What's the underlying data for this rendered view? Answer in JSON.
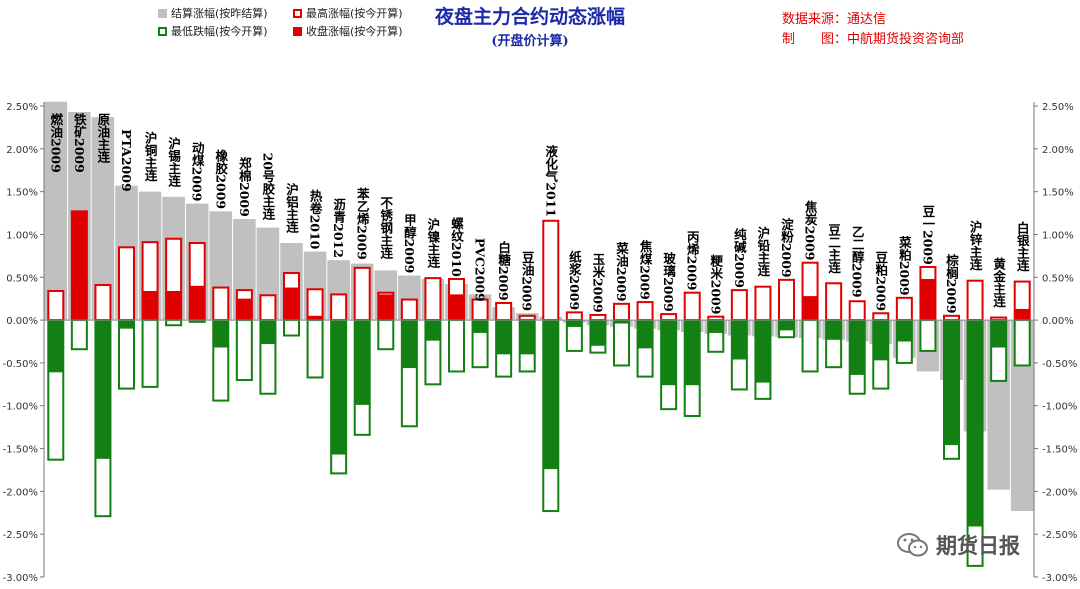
{
  "legend": {
    "settle": "结算涨幅(按昨结算)",
    "high": "最高涨幅(按今开算)",
    "low": "最低跌幅(按今开算)",
    "close": "收盘涨幅(按今开算)"
  },
  "header": {
    "title": "夜盘主力合约动态涨幅",
    "subtitle": "(开盘价计算)"
  },
  "source": {
    "line1": "数据来源：通达信",
    "line2": "制　　图：中航期货投资咨询部"
  },
  "watermark": {
    "text": "期货日报"
  },
  "colors": {
    "settle": "#c0c0c0",
    "high": "#e00000",
    "close": "#e00000",
    "low": "#128012",
    "label": "#000000"
  },
  "chart_data": {
    "type": "bar",
    "ylim": [
      -0.03,
      0.025
    ],
    "y_ticks": [
      "2.50%",
      "2.00%",
      "1.50%",
      "1.00%",
      "0.50%",
      "0.00%",
      "-0.50%",
      "-1.00%",
      "-1.50%",
      "-2.00%",
      "-2.50%",
      "-3.00%"
    ],
    "y_tick_values": [
      0.025,
      0.02,
      0.015,
      0.01,
      0.005,
      0,
      -0.005,
      -0.01,
      -0.015,
      -0.02,
      -0.025,
      -0.03
    ],
    "grid": false,
    "legend_position": "top-left",
    "categories": [
      "燃油2009",
      "铁矿2009",
      "原油主连",
      "PTA2009",
      "沪铜主连",
      "沪锡主连",
      "动煤2009",
      "橡胶2009",
      "郑棉2009",
      "20号胶主连",
      "沪铝主连",
      "热卷2010",
      "沥青2012",
      "苯乙烯2009",
      "不锈钢主连",
      "甲醇2009",
      "沪镍主连",
      "螺纹2010",
      "PVC2009",
      "白糖2009",
      "豆油2009",
      "液化气2011",
      "纸浆2009",
      "玉米2009",
      "菜油2009",
      "焦煤2009",
      "玻璃2009",
      "丙烯2009",
      "粳米2009",
      "纯碱2009",
      "沪铅主连",
      "淀粉2009",
      "焦炭2009",
      "豆二主连",
      "乙二醇2009",
      "豆粕2009",
      "菜粕2009",
      "豆一2009",
      "棕榈2009",
      "沪锌主连",
      "黄金主连",
      "白银主连"
    ],
    "series": [
      {
        "name": "结算涨幅(按昨结算)",
        "values": [
          0.0255,
          0.0243,
          0.0237,
          0.0157,
          0.015,
          0.0144,
          0.0136,
          0.0127,
          0.0118,
          0.0108,
          0.009,
          0.008,
          0.007,
          0.0066,
          0.0058,
          0.0052,
          0.0048,
          0.0042,
          0.003,
          0.0015,
          0.0008,
          0.0004,
          -0.0003,
          -0.0006,
          -0.0008,
          -0.001,
          -0.0012,
          -0.0014,
          -0.0016,
          -0.0018,
          -0.0019,
          -0.002,
          -0.0021,
          -0.0023,
          -0.0025,
          -0.0028,
          -0.0044,
          -0.006,
          -0.007,
          -0.013,
          -0.0198,
          -0.0223
        ]
      },
      {
        "name": "最高涨幅(按今开算)",
        "values": [
          0.0034,
          0.0127,
          0.0041,
          0.0085,
          0.0091,
          0.0095,
          0.009,
          0.0038,
          0.0035,
          0.0029,
          0.0055,
          0.0036,
          0.003,
          0.0061,
          0.0032,
          0.0024,
          0.0049,
          0.0048,
          0.0024,
          0.002,
          0.0005,
          0.0116,
          0.0009,
          0.0006,
          0.0019,
          0.0021,
          0.0007,
          0.0032,
          0.0004,
          0.0035,
          0.0039,
          0.0047,
          0.0067,
          0.0043,
          0.0022,
          0.0008,
          0.0026,
          0.0062,
          0.0005,
          0.0046,
          0.0003,
          0.0045
        ]
      },
      {
        "name": "最低跌幅(按今开算)",
        "values": [
          -0.0163,
          -0.0034,
          -0.0229,
          -0.008,
          -0.0078,
          -0.0006,
          -0.0002,
          -0.0094,
          -0.007,
          -0.0086,
          -0.0018,
          -0.0067,
          -0.0179,
          -0.0134,
          -0.0034,
          -0.0124,
          -0.0075,
          -0.006,
          -0.0055,
          -0.0066,
          -0.006,
          -0.0223,
          -0.0036,
          -0.0038,
          -0.0053,
          -0.0066,
          -0.0104,
          -0.0112,
          -0.0037,
          -0.0081,
          -0.0092,
          -0.002,
          -0.006,
          -0.0055,
          -0.0086,
          -0.008,
          -0.005,
          -0.0036,
          -0.0162,
          -0.0287,
          -0.0071,
          -0.0053
        ]
      },
      {
        "name": "收盘涨幅(按今开算)",
        "values": [
          -0.0061,
          0.0127,
          -0.0162,
          -0.001,
          0.0034,
          0.0034,
          0.004,
          -0.0032,
          0.0025,
          -0.0028,
          0.0038,
          0.0005,
          -0.0157,
          -0.0099,
          0.003,
          -0.0056,
          -0.0024,
          0.003,
          -0.0015,
          -0.004,
          -0.004,
          -0.0174,
          -0.0008,
          -0.003,
          -0.0004,
          -0.0033,
          -0.0076,
          -0.0076,
          -0.0015,
          -0.0046,
          -0.0073,
          -0.0012,
          0.0028,
          -0.0023,
          -0.0064,
          -0.0047,
          -0.0025,
          0.0048,
          -0.0146,
          -0.0241,
          -0.0032,
          0.0013
        ]
      }
    ]
  }
}
